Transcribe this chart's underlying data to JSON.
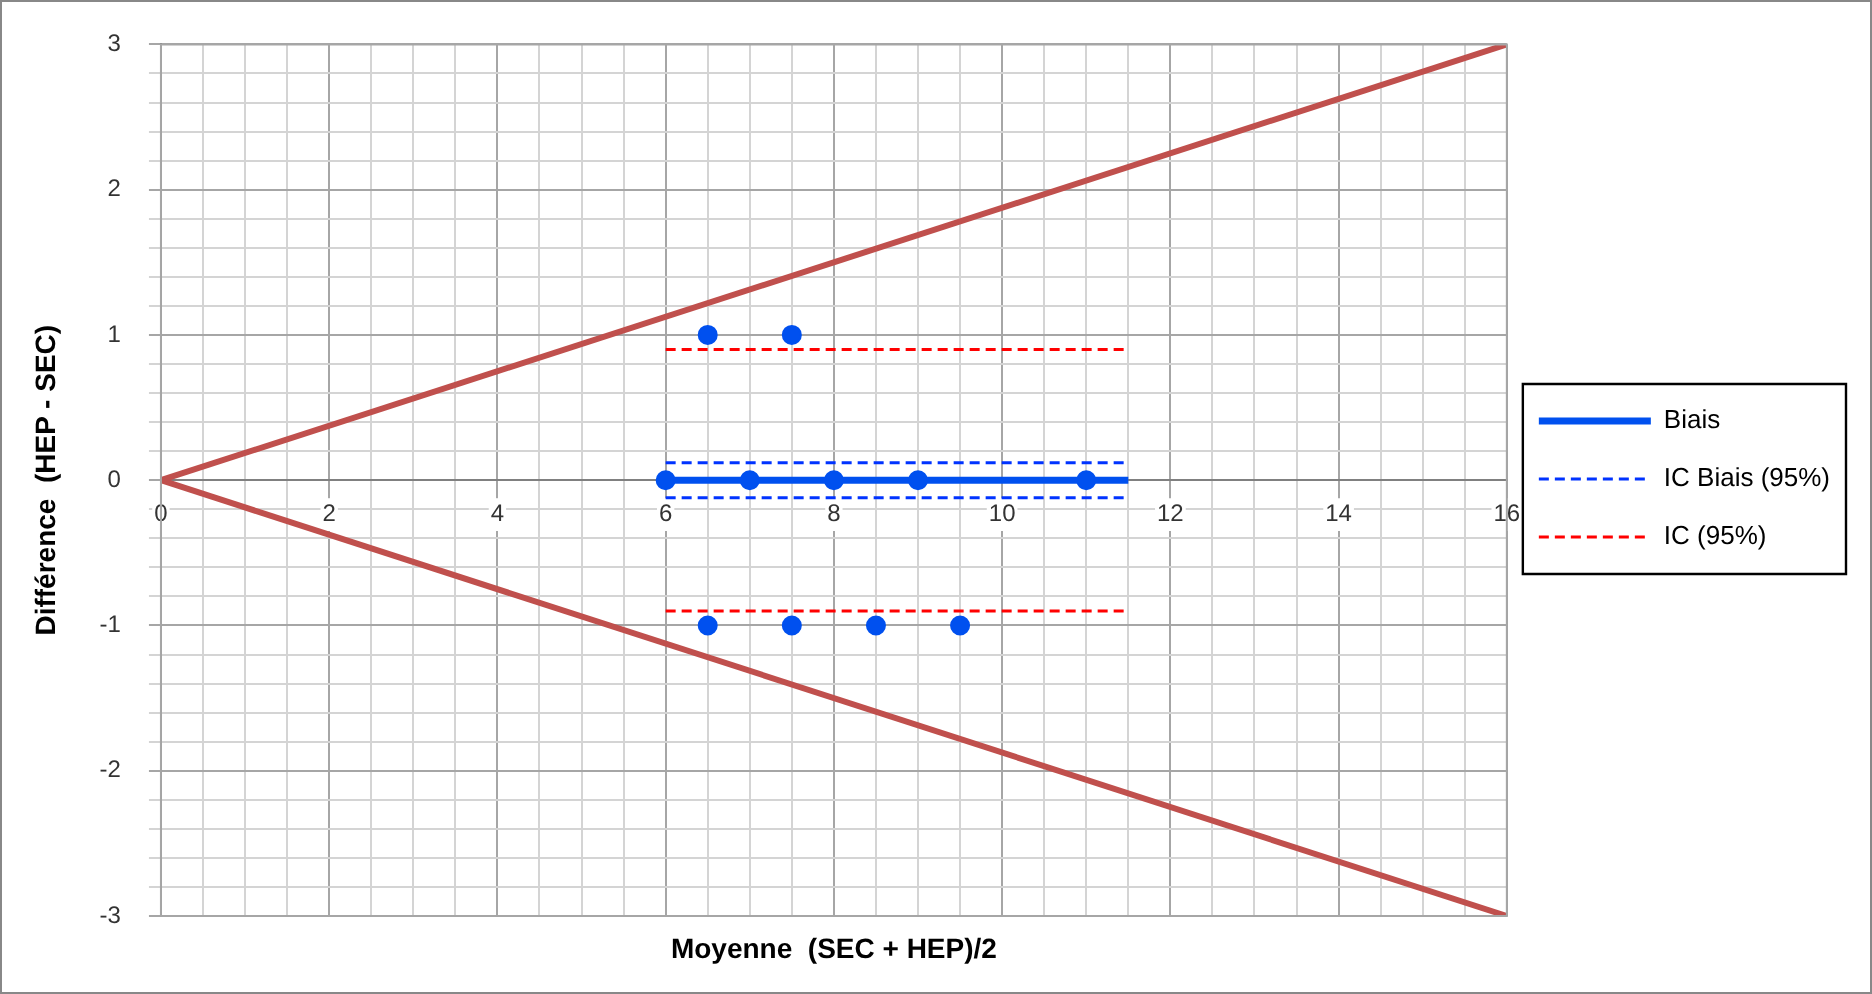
{
  "chart_data": {
    "type": "line",
    "xlabel": "Moyenne  (SEC + HEP)/2",
    "ylabel": "Différence  (HEP - SEC)",
    "xlim": [
      0,
      16
    ],
    "ylim": [
      -3,
      3
    ],
    "xticks": [
      0,
      {
        "value": 0.5,
        "label": null
      },
      {
        "value": 1,
        "label": null
      },
      {
        "value": 1.5,
        "label": null
      },
      2,
      {
        "value": 2.5,
        "label": null
      },
      {
        "value": 3,
        "label": null
      },
      {
        "value": 3.5,
        "label": null
      },
      4,
      {
        "value": 4.5,
        "label": null
      },
      {
        "value": 5,
        "label": null
      },
      {
        "value": 5.5,
        "label": null
      },
      6,
      {
        "value": 6.5,
        "label": null
      },
      {
        "value": 7,
        "label": null
      },
      {
        "value": 7.5,
        "label": null
      },
      8,
      {
        "value": 8.5,
        "label": null
      },
      {
        "value": 9,
        "label": null
      },
      {
        "value": 9.5,
        "label": null
      },
      10,
      {
        "value": 10.5,
        "label": null
      },
      {
        "value": 11,
        "label": null
      },
      {
        "value": 11.5,
        "label": null
      },
      12,
      {
        "value": 12.5,
        "label": null
      },
      {
        "value": 13,
        "label": null
      },
      {
        "value": 13.5,
        "label": null
      },
      14,
      {
        "value": 14.5,
        "label": null
      },
      {
        "value": 15,
        "label": null
      },
      {
        "value": 15.5,
        "label": null
      },
      16
    ],
    "yticks": [
      -3,
      {
        "value": -2.8,
        "label": null
      },
      {
        "value": -2.6,
        "label": null
      },
      {
        "value": -2.4,
        "label": null
      },
      {
        "value": -2.2,
        "label": null
      },
      -2,
      {
        "value": -1.8,
        "label": null
      },
      {
        "value": -1.6,
        "label": null
      },
      {
        "value": -1.4,
        "label": null
      },
      {
        "value": -1.2,
        "label": null
      },
      -1,
      {
        "value": -0.8,
        "label": null
      },
      {
        "value": -0.6,
        "label": null
      },
      {
        "value": -0.4,
        "label": null
      },
      {
        "value": -0.2,
        "label": null
      },
      0,
      {
        "value": 0.2,
        "label": null
      },
      {
        "value": 0.4,
        "label": null
      },
      {
        "value": 0.6,
        "label": null
      },
      {
        "value": 0.8,
        "label": null
      },
      1,
      {
        "value": 1.2,
        "label": null
      },
      {
        "value": 1.4,
        "label": null
      },
      {
        "value": 1.6,
        "label": null
      },
      {
        "value": 1.8,
        "label": null
      },
      2,
      {
        "value": 2.2,
        "label": null
      },
      {
        "value": 2.4,
        "label": null
      },
      {
        "value": 2.6,
        "label": null
      },
      {
        "value": 2.8,
        "label": null
      },
      3
    ],
    "grid": true,
    "legend": "right",
    "series": [
      {
        "color": "#c0504d",
        "x": [
          0,
          16
        ],
        "values": [
          0,
          3
        ],
        "marker": "none",
        "line_style": "solid"
      },
      {
        "color": "#c0504d",
        "x": [
          0,
          16
        ],
        "values": [
          0,
          -3
        ],
        "marker": "none",
        "line_style": "solid"
      },
      {
        "name": "Biais",
        "color": "#0050ef",
        "x": [
          6,
          11.5
        ],
        "values": [
          0,
          0
        ],
        "marker": "none",
        "line_style": "solid"
      },
      {
        "name": "IC Biais (95%)",
        "color": "#0033ff",
        "x": [
          6,
          11.5
        ],
        "values": [
          0.12,
          0.12
        ],
        "marker": "none",
        "line_style": "dashed"
      },
      {
        "color": "#0033ff",
        "x": [
          6,
          11.5
        ],
        "values": [
          -0.12,
          -0.12
        ],
        "marker": "none",
        "line_style": "dashed"
      },
      {
        "name": "IC (95%)",
        "color": "#ff0000",
        "x": [
          6,
          11.5
        ],
        "values": [
          0.9,
          0.9
        ],
        "marker": "none",
        "line_style": "dashed"
      },
      {
        "color": "#ff0000",
        "x": [
          6,
          11.5
        ],
        "values": [
          -0.9,
          -0.9
        ],
        "marker": "none",
        "line_style": "dashed"
      },
      {
        "type": "scatter",
        "color": "#0050ef",
        "x": [
          6,
          7,
          8,
          9,
          11,
          6.5,
          7.5,
          6.5,
          7.5,
          8.5,
          9.5
        ],
        "values": [
          0,
          0,
          0,
          0,
          0,
          1,
          1,
          -1,
          -1,
          -1,
          -1
        ],
        "marker": "circle"
      }
    ]
  }
}
